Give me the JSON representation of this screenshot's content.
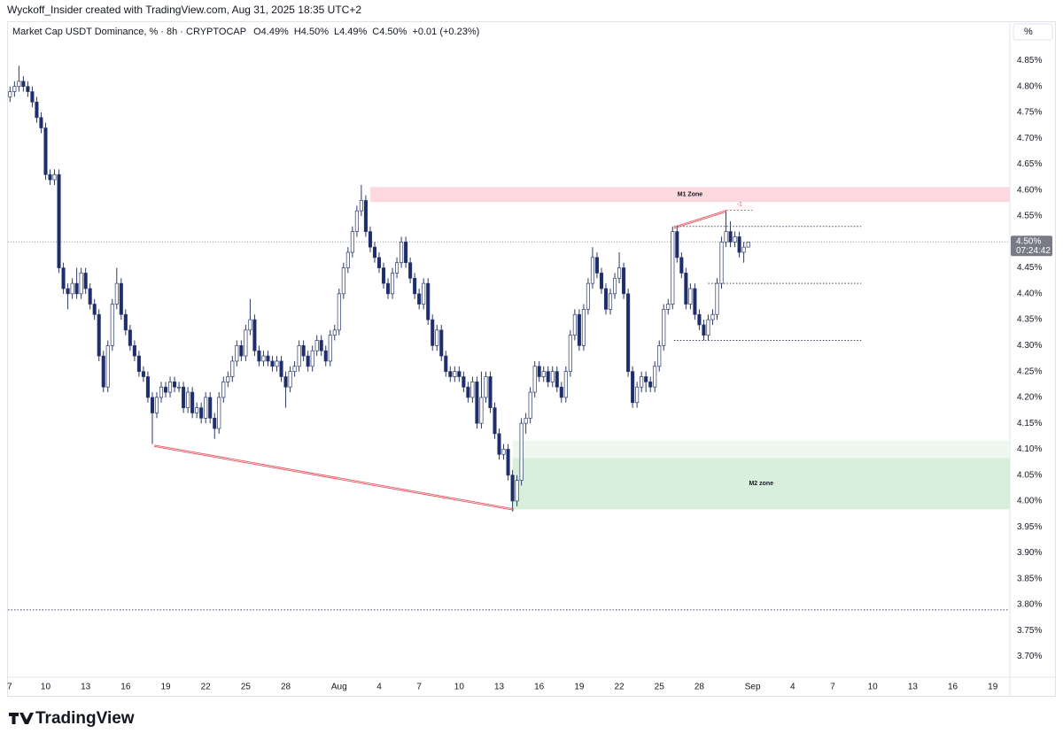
{
  "credit": "Wyckoff_Insider created with TradingView.com, Aug 31, 2025 18:35 UTC+2",
  "logo": "TradingView",
  "chart_data": {
    "type": "candlestick",
    "header": {
      "symbol": "Market Cap USDT Dominance, % · 8h · CRYPTOCAP",
      "ohlc": [
        "O4.49%",
        "H4.50%",
        "L4.49%",
        "C4.50%",
        "+0.01 (+0.23%)"
      ]
    },
    "unit_label": "%",
    "colors": {
      "up": "#ffffff",
      "down": "#1c2c6e",
      "outline": "#2b3a6b"
    },
    "categories": [
      "7",
      null,
      null,
      null,
      null,
      null,
      null,
      null,
      null,
      "10",
      null,
      null,
      null,
      null,
      null,
      null,
      null,
      null,
      "13",
      null,
      null,
      null,
      null,
      null,
      null,
      null,
      null,
      "16",
      null,
      null,
      null,
      null,
      null,
      null,
      null,
      null,
      "19",
      null,
      null,
      null,
      null,
      null,
      null,
      null,
      null,
      "22",
      null,
      null,
      null,
      null,
      null,
      null,
      null,
      null,
      "25",
      null,
      null,
      null,
      null,
      null,
      null,
      null,
      null,
      "28",
      null,
      null,
      null,
      null,
      null,
      null,
      null,
      null,
      null,
      null,
      null,
      "Aug",
      null,
      null,
      null,
      null,
      null,
      null,
      null,
      null,
      "4",
      null,
      null,
      null,
      null,
      null,
      null,
      null,
      null,
      "7",
      null,
      null,
      null,
      null,
      null,
      null,
      null,
      null,
      "10",
      null,
      null,
      null,
      null,
      null,
      null,
      null,
      null,
      "13",
      null,
      null,
      null,
      null,
      null,
      null,
      null,
      null,
      "16",
      null,
      null,
      null,
      null,
      null,
      null,
      null,
      null,
      "19",
      null,
      null,
      null,
      null,
      null,
      null,
      null,
      null,
      "22",
      null,
      null,
      null,
      null,
      null,
      null,
      null,
      null,
      "25",
      null,
      null,
      null,
      null,
      null,
      null,
      null,
      null,
      "28",
      null,
      null,
      null,
      null,
      null,
      null,
      null,
      null,
      null,
      null,
      null,
      "Sep",
      null,
      null,
      null,
      null,
      null,
      null,
      null,
      null,
      "4",
      null,
      null,
      null,
      null,
      null,
      null,
      null,
      null,
      "7",
      null,
      null,
      null,
      null,
      null,
      null,
      null,
      null,
      "10",
      null,
      null,
      null,
      null,
      null,
      null,
      null,
      null,
      "13",
      null,
      null,
      null,
      null,
      null,
      null,
      null,
      null,
      "16",
      null,
      null,
      null,
      null,
      null,
      null,
      null,
      null,
      "19",
      null,
      null,
      null
    ],
    "open": [
      null,
      4.78,
      4.79,
      4.8,
      4.81,
      4.8,
      4.79,
      4.77,
      4.74,
      4.72,
      4.63,
      4.62,
      4.63,
      4.45,
      4.41,
      4.4,
      4.42,
      4.4,
      4.44,
      4.41,
      4.38,
      4.36,
      4.28,
      4.22,
      4.3,
      4.38,
      4.42,
      4.36,
      4.33,
      4.3,
      4.28,
      4.25,
      4.24,
      4.2,
      4.17,
      4.2,
      4.22,
      4.21,
      4.23,
      4.22,
      4.22,
      4.18,
      4.21,
      4.17,
      4.18,
      4.16,
      4.2,
      4.16,
      4.14,
      4.2,
      4.23,
      4.24,
      4.27,
      4.3,
      4.28,
      4.33,
      4.35,
      4.29,
      4.27,
      4.28,
      4.27,
      4.26,
      4.27,
      4.24,
      4.22,
      4.25,
      4.26,
      4.3,
      4.28,
      4.26,
      4.29,
      4.31,
      4.29,
      4.27,
      4.32,
      4.33,
      4.4,
      4.45,
      4.48,
      4.52,
      4.56,
      4.58,
      4.52,
      4.49,
      4.47,
      4.45,
      4.42,
      4.4,
      4.44,
      4.46,
      4.5,
      4.46,
      4.43,
      4.4,
      4.38,
      4.42,
      4.35,
      4.3,
      4.33,
      4.28,
      4.25,
      4.24,
      4.25,
      4.24,
      4.22,
      4.2,
      4.23,
      4.15,
      4.2,
      4.24,
      4.18,
      4.13,
      4.09,
      4.1,
      4.05,
      4.0,
      4.04,
      4.15,
      4.16,
      4.21,
      4.26,
      4.24,
      4.25,
      4.23,
      4.25,
      4.22,
      4.2,
      4.25,
      4.32,
      4.36,
      4.3,
      4.37,
      4.42,
      4.47,
      4.44,
      4.41,
      4.37,
      4.4,
      4.43,
      4.45,
      4.4,
      4.25,
      4.19,
      4.22,
      4.24,
      4.23,
      4.22,
      4.26,
      4.3,
      4.37,
      4.38,
      4.52,
      4.47,
      4.44,
      4.38,
      4.41,
      4.36,
      4.34,
      4.32,
      4.35,
      4.36,
      4.42,
      4.5,
      4.52,
      4.5,
      4.51,
      4.48,
      4.49,
      null,
      null,
      null,
      null,
      null,
      null,
      null,
      null,
      null,
      null,
      null,
      null,
      null,
      null,
      null,
      null,
      null,
      null,
      null,
      null,
      null,
      null,
      null,
      null,
      null,
      null,
      null,
      null,
      null,
      null,
      null,
      null,
      null,
      null,
      null,
      null,
      null,
      null,
      null,
      null,
      null,
      null,
      null,
      null,
      null,
      null,
      null,
      null,
      null,
      null,
      null,
      null,
      null,
      null,
      null,
      null,
      null,
      null
    ],
    "high": [
      null,
      4.8,
      4.81,
      4.84,
      4.82,
      4.81,
      4.8,
      4.78,
      4.75,
      4.73,
      4.64,
      4.64,
      4.64,
      4.46,
      4.42,
      4.43,
      4.45,
      4.45,
      4.45,
      4.42,
      4.39,
      4.37,
      4.29,
      4.31,
      4.39,
      4.45,
      4.43,
      4.37,
      4.34,
      4.31,
      4.29,
      4.26,
      4.25,
      4.21,
      4.21,
      4.23,
      4.23,
      4.24,
      4.24,
      4.23,
      4.23,
      4.22,
      4.22,
      4.19,
      4.19,
      4.21,
      4.21,
      4.17,
      4.21,
      4.24,
      4.25,
      4.28,
      4.31,
      4.31,
      4.34,
      4.39,
      4.36,
      4.3,
      4.29,
      4.29,
      4.28,
      4.28,
      4.28,
      4.25,
      4.26,
      4.27,
      4.31,
      4.31,
      4.29,
      4.3,
      4.32,
      4.32,
      4.3,
      4.33,
      4.34,
      4.41,
      4.46,
      4.49,
      4.53,
      4.57,
      4.61,
      4.59,
      4.53,
      4.5,
      4.48,
      4.46,
      4.43,
      4.45,
      4.47,
      4.51,
      4.51,
      4.47,
      4.44,
      4.41,
      4.43,
      4.43,
      4.36,
      4.34,
      4.34,
      4.29,
      4.26,
      4.26,
      4.26,
      4.25,
      4.23,
      4.24,
      4.24,
      4.25,
      4.25,
      4.25,
      4.19,
      4.14,
      4.11,
      4.11,
      4.06,
      4.05,
      4.16,
      4.17,
      4.22,
      4.27,
      4.27,
      4.26,
      4.26,
      4.26,
      4.26,
      4.23,
      4.26,
      4.33,
      4.37,
      4.37,
      4.38,
      4.43,
      4.49,
      4.48,
      4.45,
      4.42,
      4.41,
      4.44,
      4.48,
      4.46,
      4.41,
      4.26,
      4.23,
      4.25,
      4.25,
      4.24,
      4.27,
      4.31,
      4.38,
      4.39,
      4.53,
      4.53,
      4.48,
      4.45,
      4.42,
      4.42,
      4.37,
      4.35,
      4.36,
      4.37,
      4.43,
      4.51,
      4.56,
      4.54,
      4.52,
      4.52,
      4.5,
      4.5,
      null,
      null,
      null,
      null,
      null,
      null,
      null,
      null,
      null,
      null,
      null,
      null,
      null,
      null,
      null,
      null,
      null,
      null,
      null,
      null,
      null,
      null,
      null,
      null,
      null,
      null,
      null,
      null,
      null,
      null,
      null,
      null,
      null,
      null,
      null,
      null,
      null,
      null,
      null,
      null,
      null,
      null,
      null,
      null,
      null,
      null,
      null,
      null,
      null,
      null,
      null,
      null,
      null,
      null,
      null,
      null,
      null,
      null
    ],
    "low": [
      null,
      4.77,
      4.78,
      4.79,
      4.79,
      4.78,
      4.76,
      4.73,
      4.71,
      4.62,
      4.61,
      4.61,
      4.44,
      4.4,
      4.37,
      4.39,
      4.39,
      4.39,
      4.4,
      4.37,
      4.35,
      4.27,
      4.21,
      4.21,
      4.29,
      4.37,
      4.35,
      4.32,
      4.29,
      4.27,
      4.24,
      4.23,
      4.19,
      4.11,
      4.16,
      4.19,
      4.2,
      4.2,
      4.21,
      4.21,
      4.17,
      4.17,
      4.16,
      4.16,
      4.15,
      4.15,
      4.15,
      4.12,
      4.13,
      4.19,
      4.22,
      4.23,
      4.26,
      4.27,
      4.27,
      4.32,
      4.28,
      4.26,
      4.26,
      4.26,
      4.25,
      4.25,
      4.23,
      4.18,
      4.21,
      4.24,
      4.25,
      4.27,
      4.25,
      4.25,
      4.28,
      4.28,
      4.26,
      4.26,
      4.31,
      4.32,
      4.39,
      4.44,
      4.47,
      4.51,
      4.55,
      4.51,
      4.48,
      4.46,
      4.44,
      4.41,
      4.39,
      4.39,
      4.43,
      4.45,
      4.45,
      4.42,
      4.39,
      4.37,
      4.37,
      4.34,
      4.29,
      4.29,
      4.27,
      4.24,
      4.23,
      4.23,
      4.23,
      4.21,
      4.19,
      4.19,
      4.14,
      4.14,
      4.19,
      4.17,
      4.12,
      4.08,
      4.08,
      4.04,
      3.98,
      3.99,
      4.03,
      4.13,
      4.15,
      4.2,
      4.23,
      4.23,
      4.22,
      4.22,
      4.21,
      4.19,
      4.19,
      4.24,
      4.31,
      4.29,
      4.29,
      4.36,
      4.41,
      4.43,
      4.4,
      4.36,
      4.36,
      4.39,
      4.42,
      4.39,
      4.24,
      4.18,
      4.18,
      4.21,
      4.21,
      4.21,
      4.21,
      4.25,
      4.29,
      4.36,
      4.37,
      4.46,
      4.43,
      4.37,
      4.37,
      4.35,
      4.33,
      4.31,
      4.31,
      4.34,
      4.35,
      4.41,
      4.49,
      4.49,
      4.49,
      4.47,
      4.46,
      4.49,
      null,
      null,
      null,
      null,
      null,
      null,
      null,
      null,
      null,
      null,
      null,
      null,
      null,
      null,
      null,
      null,
      null,
      null,
      null,
      null,
      null,
      null,
      null,
      null,
      null,
      null,
      null,
      null,
      null,
      null,
      null,
      null,
      null,
      null,
      null,
      null,
      null,
      null,
      null,
      null,
      null,
      null,
      null,
      null,
      null,
      null,
      null,
      null,
      null,
      null,
      null,
      null,
      null,
      null,
      null,
      null,
      null,
      null
    ],
    "close": [
      null,
      4.79,
      4.8,
      4.81,
      4.8,
      4.79,
      4.77,
      4.74,
      4.72,
      4.63,
      4.62,
      4.63,
      4.45,
      4.41,
      4.4,
      4.42,
      4.4,
      4.44,
      4.41,
      4.38,
      4.36,
      4.28,
      4.22,
      4.3,
      4.38,
      4.42,
      4.36,
      4.33,
      4.3,
      4.28,
      4.25,
      4.24,
      4.2,
      4.17,
      4.2,
      4.22,
      4.21,
      4.23,
      4.22,
      4.22,
      4.18,
      4.21,
      4.17,
      4.18,
      4.16,
      4.2,
      4.16,
      4.14,
      4.2,
      4.23,
      4.24,
      4.27,
      4.3,
      4.28,
      4.33,
      4.35,
      4.29,
      4.27,
      4.28,
      4.27,
      4.26,
      4.27,
      4.24,
      4.22,
      4.25,
      4.26,
      4.3,
      4.28,
      4.26,
      4.29,
      4.31,
      4.29,
      4.27,
      4.32,
      4.33,
      4.4,
      4.45,
      4.48,
      4.52,
      4.56,
      4.58,
      4.52,
      4.49,
      4.47,
      4.45,
      4.42,
      4.4,
      4.44,
      4.46,
      4.5,
      4.46,
      4.43,
      4.4,
      4.38,
      4.42,
      4.35,
      4.3,
      4.33,
      4.28,
      4.25,
      4.24,
      4.25,
      4.24,
      4.22,
      4.2,
      4.23,
      4.15,
      4.2,
      4.24,
      4.18,
      4.13,
      4.09,
      4.1,
      4.05,
      4.0,
      4.04,
      4.15,
      4.16,
      4.21,
      4.26,
      4.24,
      4.25,
      4.23,
      4.25,
      4.22,
      4.2,
      4.25,
      4.32,
      4.36,
      4.3,
      4.37,
      4.42,
      4.47,
      4.44,
      4.41,
      4.37,
      4.4,
      4.43,
      4.45,
      4.4,
      4.25,
      4.19,
      4.22,
      4.24,
      4.23,
      4.22,
      4.26,
      4.3,
      4.37,
      4.38,
      4.52,
      4.47,
      4.44,
      4.38,
      4.41,
      4.36,
      4.34,
      4.32,
      4.35,
      4.36,
      4.42,
      4.5,
      4.52,
      4.5,
      4.51,
      4.48,
      4.49,
      4.5,
      null,
      null,
      null,
      null,
      null,
      null,
      null,
      null,
      null,
      null,
      null,
      null,
      null,
      null,
      null,
      null,
      null,
      null,
      null,
      null,
      null,
      null,
      null,
      null,
      null,
      null,
      null,
      null,
      null,
      null,
      null,
      null,
      null,
      null,
      null,
      null,
      null,
      null,
      null,
      null,
      null,
      null,
      null,
      null,
      null,
      null,
      null,
      null,
      null,
      null,
      null,
      null,
      null,
      null,
      null,
      null,
      null,
      null
    ],
    "ylim": [
      3.66,
      4.89
    ],
    "yticks": [
      {
        "value": 3.7,
        "label": "3.70%"
      },
      {
        "value": 3.75,
        "label": "3.75%"
      },
      {
        "value": 3.8,
        "label": "3.80%"
      },
      {
        "value": 3.85,
        "label": "3.85%"
      },
      {
        "value": 3.9,
        "label": "3.90%"
      },
      {
        "value": 3.95,
        "label": "3.95%"
      },
      {
        "value": 4.0,
        "label": "4.00%"
      },
      {
        "value": 4.05,
        "label": "4.05%"
      },
      {
        "value": 4.1,
        "label": "4.10%"
      },
      {
        "value": 4.15,
        "label": "4.15%"
      },
      {
        "value": 4.2,
        "label": "4.20%"
      },
      {
        "value": 4.25,
        "label": "4.25%"
      },
      {
        "value": 4.3,
        "label": "4.30%"
      },
      {
        "value": 4.35,
        "label": "4.35%"
      },
      {
        "value": 4.4,
        "label": "4.40%"
      },
      {
        "value": 4.45,
        "label": "4.45%"
      },
      {
        "value": 4.55,
        "label": "4.55%"
      },
      {
        "value": 4.6,
        "label": "4.60%"
      },
      {
        "value": 4.65,
        "label": "4.65%"
      },
      {
        "value": 4.7,
        "label": "4.70%"
      },
      {
        "value": 4.75,
        "label": "4.75%"
      },
      {
        "value": 4.8,
        "label": "4.80%"
      },
      {
        "value": 4.85,
        "label": "4.85%"
      }
    ],
    "last_price": {
      "value": 4.5,
      "label": "4.50%",
      "countdown": "07:24:42"
    },
    "zones": [
      {
        "label": "M1 Zone",
        "color": "#fbd9de",
        "x_start": 82,
        "y_range": [
          4.577,
          4.606
        ]
      },
      {
        "color": "#eef8ef",
        "x_start": 114,
        "y_range": [
          4.083,
          4.117
        ]
      },
      {
        "label": "M2 zone",
        "color": "#d8efdb",
        "x_start": 114,
        "y_range": [
          3.984,
          4.083
        ]
      }
    ],
    "trendlines": [
      {
        "color": "#e5545f",
        "from": [
          33.4,
          4.108
        ],
        "to": [
          114.3,
          3.985
        ]
      },
      {
        "color": "#e5545f",
        "from": [
          150.3,
          4.529
        ],
        "to": [
          162.1,
          4.561
        ]
      }
    ],
    "marker": {
      "label": "-1",
      "color": "#e5545f",
      "x": [
        162.1,
        168
      ],
      "y": 4.561
    },
    "levels": [
      {
        "y": 4.53,
        "x_range": [
          150.3,
          192.4
        ]
      },
      {
        "y": 4.42,
        "x_range": [
          158,
          192.4
        ]
      },
      {
        "y": 4.31,
        "x_range": [
          150.3,
          192.4
        ]
      },
      {
        "y": 3.79,
        "x_range": [
          0,
          225.4
        ]
      }
    ]
  }
}
